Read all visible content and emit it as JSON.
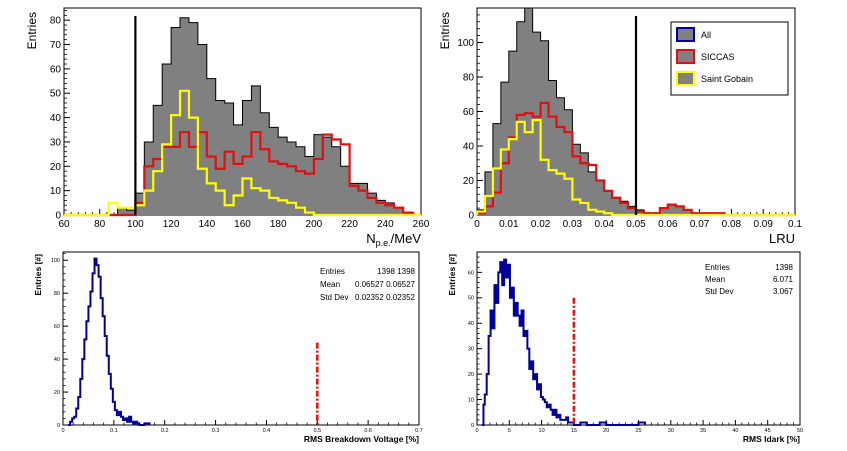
{
  "chart_data": [
    {
      "type": "histogram",
      "xlabel_main": "N",
      "xlabel_sub": "p.e.",
      "xlabel_tail": "/MeV",
      "ylabel": "Entries",
      "xlim": [
        60,
        260
      ],
      "ylim": [
        0,
        85
      ],
      "x_ticks": [
        60,
        80,
        100,
        120,
        140,
        160,
        180,
        200,
        220,
        240,
        260
      ],
      "y_ticks": [
        0,
        10,
        20,
        30,
        40,
        50,
        60,
        70,
        80
      ],
      "bin_start": 60,
      "bin_width": 5,
      "cut_line_x": 100,
      "series": [
        {
          "name": "All",
          "color": "#808080",
          "values": [
            0,
            0,
            0,
            0,
            0,
            0,
            3,
            2,
            9,
            30,
            45,
            62,
            77,
            81,
            79,
            70,
            56,
            47,
            46,
            37,
            47,
            53,
            42,
            36,
            32,
            30,
            28,
            24,
            33,
            32,
            28,
            20,
            13,
            13,
            9,
            6,
            5,
            3,
            1,
            0
          ]
        },
        {
          "name": "SICCAS",
          "color": "#e01010",
          "values": [
            0,
            0,
            0,
            0,
            0,
            0,
            0,
            0,
            5,
            20,
            23,
            28,
            28,
            34,
            28,
            34,
            24,
            19,
            26,
            21,
            24,
            34,
            27,
            22,
            21,
            20,
            18,
            17,
            23,
            33,
            31,
            29,
            12,
            10,
            7,
            5,
            4,
            3,
            1,
            0
          ]
        },
        {
          "name": "Saint Gobain",
          "color": "#ffff00",
          "values": [
            0,
            0,
            0,
            0,
            0,
            5,
            3,
            3,
            4,
            10,
            18,
            29,
            41,
            51,
            40,
            19,
            13,
            10,
            4,
            8,
            15,
            11,
            10,
            7,
            6,
            5,
            3,
            1,
            0,
            0,
            0,
            0,
            0,
            0,
            0,
            0,
            0,
            0,
            0,
            0
          ]
        }
      ]
    },
    {
      "type": "histogram",
      "xlabel": "LRU",
      "ylabel": "Entries",
      "xlim": [
        0,
        0.1
      ],
      "ylim": [
        0,
        120
      ],
      "x_ticks": [
        0,
        0.01,
        0.02,
        0.03,
        0.04,
        0.05,
        0.06,
        0.07,
        0.08,
        0.09,
        0.1
      ],
      "y_ticks": [
        0,
        20,
        40,
        60,
        80,
        100
      ],
      "bin_start": 0,
      "bin_width": 0.0025,
      "cut_line_x": 0.05,
      "legend": {
        "position": "top-right",
        "entries": [
          "All",
          "SICCAS",
          "Saint Gobain"
        ]
      },
      "series": [
        {
          "name": "All",
          "color": "#808080",
          "values": [
            3,
            25,
            53,
            77,
            95,
            112,
            120,
            106,
            101,
            78,
            68,
            61,
            41,
            36,
            25,
            20,
            14,
            10,
            8,
            5,
            3,
            1,
            1,
            4,
            6,
            5,
            3,
            1,
            1,
            1,
            1,
            0,
            0,
            0,
            0,
            0,
            0,
            0,
            0,
            0
          ]
        },
        {
          "name": "SICCAS",
          "color": "#e01010",
          "values": [
            1,
            5,
            13,
            30,
            45,
            58,
            59,
            57,
            65,
            57,
            51,
            48,
            34,
            30,
            29,
            20,
            14,
            10,
            7,
            4,
            2,
            1,
            1,
            4,
            6,
            5,
            3,
            1,
            1,
            1,
            1,
            0,
            0,
            0,
            0,
            0,
            0,
            0,
            0,
            0
          ]
        },
        {
          "name": "Saint Gobain",
          "color": "#ffff00",
          "values": [
            2,
            11,
            27,
            38,
            44,
            54,
            48,
            55,
            32,
            26,
            24,
            21,
            9,
            7,
            3,
            2,
            1,
            0,
            0,
            0,
            0,
            0,
            0,
            0,
            0,
            0,
            0,
            0,
            0,
            0,
            0,
            0,
            0,
            0,
            0,
            0,
            0,
            0,
            0,
            0
          ]
        }
      ]
    },
    {
      "type": "histogram",
      "xlabel": "RMS Breakdown Voltage [%]",
      "ylabel": "Entries [#]",
      "xlim": [
        0,
        0.7
      ],
      "ylim": [
        0,
        105
      ],
      "x_ticks": [
        0,
        0.1,
        0.2,
        0.3,
        0.4,
        0.5,
        0.6,
        0.7
      ],
      "y_ticks": [
        0,
        20,
        40,
        60,
        80,
        100
      ],
      "cut_line_x": 0.5,
      "cut_line_top": 50,
      "stats": [
        {
          "label": "Entries",
          "value": "1398 1398"
        },
        {
          "label": "Mean",
          "value": "0.06527 0.06527"
        },
        {
          "label": "Std Dev",
          "value": "0.02352 0.02352"
        }
      ],
      "series": [
        {
          "name": "",
          "color": "#000099",
          "points": [
            [
              0.01,
              0
            ],
            [
              0.014,
              2
            ],
            [
              0.018,
              4
            ],
            [
              0.022,
              5
            ],
            [
              0.026,
              10
            ],
            [
              0.03,
              17
            ],
            [
              0.034,
              28
            ],
            [
              0.038,
              40
            ],
            [
              0.042,
              52
            ],
            [
              0.046,
              63
            ],
            [
              0.05,
              72
            ],
            [
              0.054,
              81
            ],
            [
              0.058,
              92
            ],
            [
              0.062,
              101
            ],
            [
              0.066,
              97
            ],
            [
              0.07,
              90
            ],
            [
              0.074,
              77
            ],
            [
              0.078,
              66
            ],
            [
              0.082,
              54
            ],
            [
              0.086,
              42
            ],
            [
              0.09,
              31
            ],
            [
              0.094,
              22
            ],
            [
              0.098,
              14
            ],
            [
              0.102,
              9
            ],
            [
              0.106,
              6
            ],
            [
              0.11,
              8
            ],
            [
              0.114,
              5
            ],
            [
              0.118,
              3
            ],
            [
              0.122,
              4
            ],
            [
              0.126,
              2
            ],
            [
              0.13,
              5
            ],
            [
              0.134,
              2
            ],
            [
              0.138,
              1
            ],
            [
              0.142,
              2
            ],
            [
              0.146,
              1
            ],
            [
              0.15,
              0
            ],
            [
              0.16,
              1
            ],
            [
              0.17,
              0
            ]
          ]
        }
      ]
    },
    {
      "type": "histogram",
      "xlabel": "RMS Idark [%]",
      "ylabel": "Entries [#]",
      "xlim": [
        0,
        50
      ],
      "ylim": [
        0,
        68
      ],
      "x_ticks": [
        0,
        5,
        10,
        15,
        20,
        25,
        30,
        35,
        40,
        45,
        50
      ],
      "y_ticks": [
        0,
        10,
        20,
        30,
        40,
        50,
        60
      ],
      "cut_line_x": 15,
      "cut_line_top": 50,
      "stats": [
        {
          "label": "Entries",
          "value": "1398"
        },
        {
          "label": "Mean",
          "value": "6.071"
        },
        {
          "label": "Std Dev",
          "value": "3.067"
        }
      ],
      "series": [
        {
          "name": "",
          "color": "#000099",
          "points": [
            [
              0.8,
              0
            ],
            [
              1.0,
              8
            ],
            [
              1.2,
              12
            ],
            [
              1.5,
              20
            ],
            [
              1.8,
              35
            ],
            [
              2.1,
              45
            ],
            [
              2.4,
              38
            ],
            [
              2.7,
              55
            ],
            [
              3.0,
              48
            ],
            [
              3.3,
              60
            ],
            [
              3.6,
              64
            ],
            [
              3.9,
              55
            ],
            [
              4.2,
              65
            ],
            [
              4.5,
              58
            ],
            [
              4.8,
              63
            ],
            [
              5.1,
              50
            ],
            [
              5.4,
              54
            ],
            [
              5.7,
              43
            ],
            [
              6.0,
              48
            ],
            [
              6.3,
              43
            ],
            [
              6.6,
              39
            ],
            [
              6.9,
              45
            ],
            [
              7.2,
              35
            ],
            [
              7.5,
              37
            ],
            [
              7.8,
              30
            ],
            [
              8.1,
              22
            ],
            [
              8.4,
              25
            ],
            [
              8.7,
              18
            ],
            [
              9.0,
              20
            ],
            [
              9.3,
              14
            ],
            [
              9.6,
              16
            ],
            [
              9.9,
              11
            ],
            [
              10.2,
              10
            ],
            [
              10.5,
              9
            ],
            [
              10.8,
              7
            ],
            [
              11.1,
              8
            ],
            [
              11.4,
              6
            ],
            [
              11.7,
              4
            ],
            [
              12.0,
              6
            ],
            [
              12.3,
              3
            ],
            [
              12.6,
              4
            ],
            [
              12.9,
              2
            ],
            [
              13.2,
              2
            ],
            [
              13.5,
              2
            ],
            [
              13.8,
              3
            ],
            [
              14.1,
              1
            ],
            [
              14.4,
              1
            ],
            [
              14.7,
              1
            ],
            [
              15.0,
              0
            ],
            [
              16,
              1
            ],
            [
              17,
              0
            ],
            [
              19,
              1
            ],
            [
              20,
              0
            ],
            [
              25,
              1
            ],
            [
              26,
              0
            ]
          ]
        }
      ]
    }
  ]
}
